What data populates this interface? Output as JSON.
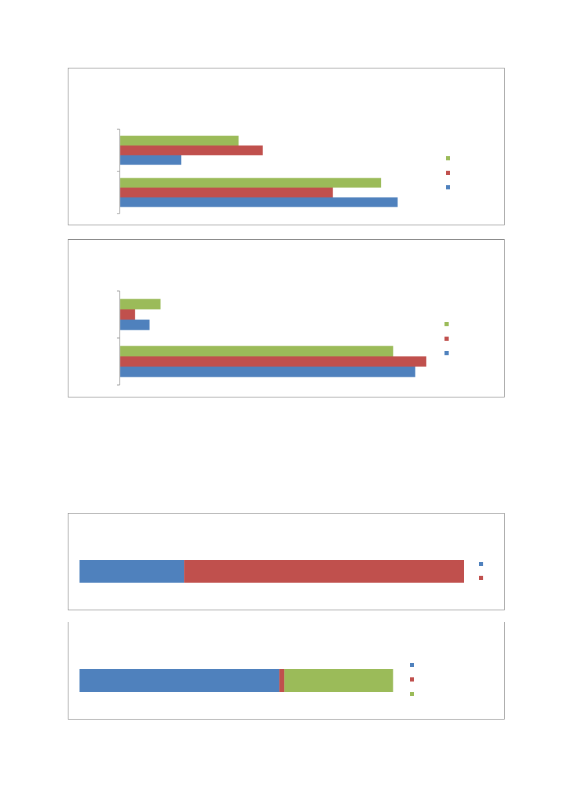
{
  "colors": {
    "blue": "#4f81bd",
    "red": "#c0504d",
    "green": "#9bbb59",
    "axis": "#8c8c8c"
  },
  "chart_data": [
    {
      "type": "bar",
      "orientation": "horizontal",
      "categories": [
        "",
        ""
      ],
      "series": [
        {
          "color": "#4f81bd",
          "values": [
            75,
            16.5
          ]
        },
        {
          "color": "#c0504d",
          "values": [
            57.5,
            38.5
          ]
        },
        {
          "color": "#9bbb59",
          "values": [
            70.5,
            32
          ]
        }
      ],
      "xlim": [
        0,
        100
      ],
      "grid": false,
      "legend": "right",
      "title": "",
      "xlabel": "",
      "ylabel": ""
    },
    {
      "type": "bar",
      "orientation": "horizontal",
      "categories": [
        "",
        ""
      ],
      "series": [
        {
          "color": "#4f81bd",
          "values": [
            80.5,
            8
          ]
        },
        {
          "color": "#c0504d",
          "values": [
            83.5,
            4
          ]
        },
        {
          "color": "#9bbb59",
          "values": [
            74.5,
            11
          ]
        }
      ],
      "xlim": [
        0,
        100
      ],
      "grid": false,
      "legend": "right",
      "title": "",
      "xlabel": "",
      "ylabel": ""
    },
    {
      "type": "bar",
      "orientation": "horizontal",
      "stacked": true,
      "percent": true,
      "categories": [
        ""
      ],
      "series": [
        {
          "color": "#4f81bd",
          "values": [
            27.2
          ]
        },
        {
          "color": "#c0504d",
          "values": [
            72.8
          ]
        }
      ],
      "xlim": [
        0,
        100
      ],
      "grid": false,
      "legend": "right",
      "title": "",
      "xlabel": "",
      "ylabel": ""
    },
    {
      "type": "bar",
      "orientation": "horizontal",
      "stacked": true,
      "percent": true,
      "categories": [
        ""
      ],
      "series": [
        {
          "color": "#4f81bd",
          "values": [
            52.0
          ]
        },
        {
          "color": "#c0504d",
          "values": [
            1.3
          ]
        },
        {
          "color": "#9bbb59",
          "values": [
            28.3
          ]
        }
      ],
      "xlim": [
        0,
        100
      ],
      "grid": false,
      "legend": "right",
      "title": "",
      "xlabel": "",
      "ylabel": ""
    }
  ]
}
